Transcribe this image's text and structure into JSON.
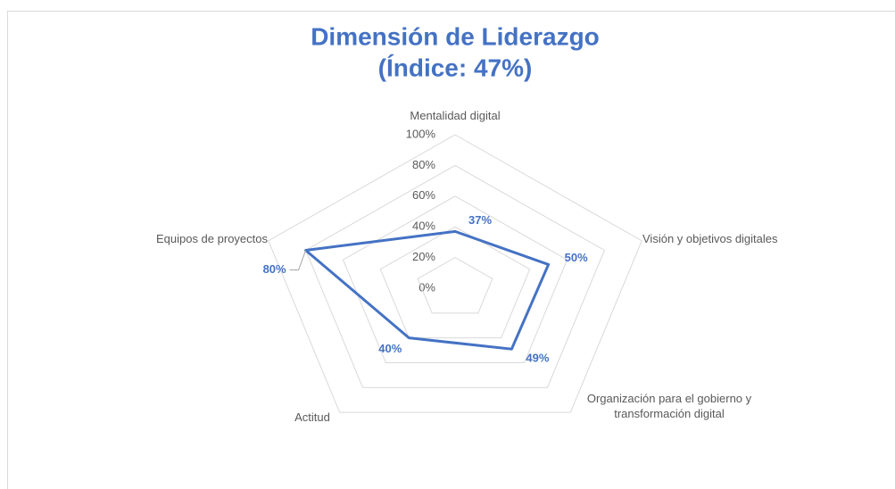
{
  "chart_data": {
    "type": "radar",
    "title": [
      "Dimensión de Liderazgo",
      "(Índice: 47%)"
    ],
    "categories": [
      "Mentalidad digital",
      "Visión y objetivos digitales",
      "Organización para el gobierno y transformación digital",
      "Actitud",
      "Equipos de proyectos"
    ],
    "series": [
      {
        "name": "Dimensión de Liderazgo",
        "color": "#4472c4",
        "values": [
          37,
          50,
          49,
          40,
          80
        ],
        "value_labels": [
          "37%",
          "50%",
          "49%",
          "40%",
          "80%"
        ]
      }
    ],
    "ylim": [
      0,
      100
    ],
    "yticks": [
      {
        "value": 0,
        "label": "0%"
      },
      {
        "value": 20,
        "label": "20%"
      },
      {
        "value": 40,
        "label": "40%"
      },
      {
        "value": 60,
        "label": "60%"
      },
      {
        "value": 80,
        "label": "80%"
      },
      {
        "value": 100,
        "label": "100%"
      }
    ],
    "grid": true
  }
}
